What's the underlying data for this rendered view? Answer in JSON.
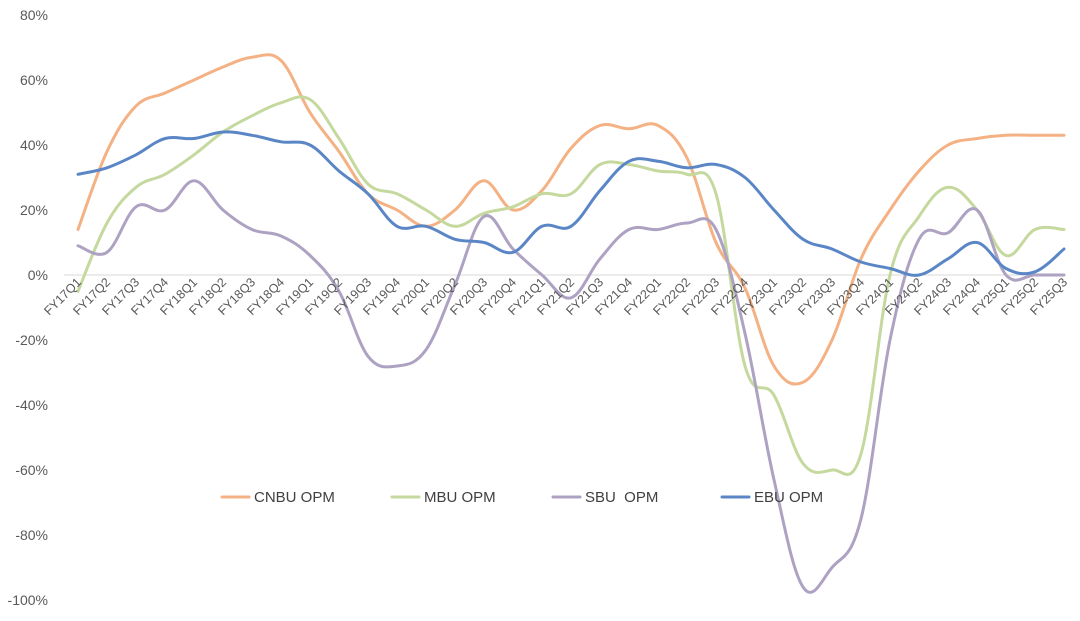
{
  "chart_data": {
    "type": "line",
    "title": "",
    "xlabel": "",
    "ylabel": "",
    "ylim": [
      -100,
      80
    ],
    "yticks": [
      80,
      60,
      40,
      20,
      0,
      -20,
      -40,
      -60,
      -80,
      -100
    ],
    "ytick_labels": [
      "80%",
      "60%",
      "40%",
      "20%",
      "0%",
      "-20%",
      "-40%",
      "-60%",
      "-80%",
      "-100%"
    ],
    "grid": false,
    "legend_position": "bottom-center",
    "categories": [
      "FY17Q1",
      "FY17Q2",
      "FY17Q3",
      "FY17Q4",
      "FY18Q1",
      "FY18Q2",
      "FY18Q3",
      "FY18Q4",
      "FY19Q1",
      "FY19Q2",
      "FY19Q3",
      "FY19Q4",
      "FY20Q1",
      "FY20Q2",
      "FY20Q3",
      "FY20Q4",
      "FY21Q1",
      "FY21Q2",
      "FY21Q3",
      "FY21Q4",
      "FY22Q1",
      "FY22Q2",
      "FY22Q3",
      "FY22Q4",
      "FY23Q1",
      "FY23Q2",
      "FY23Q3",
      "FY23Q4",
      "FY24Q1",
      "FY24Q2",
      "FY24Q3",
      "FY24Q4",
      "FY25Q1",
      "FY25Q2",
      "FY25Q3"
    ],
    "series": [
      {
        "name": "CNBU OPM",
        "color": "#F4B183",
        "values": [
          14,
          38,
          52,
          56,
          60,
          64,
          67,
          66,
          50,
          38,
          25,
          20,
          15,
          20,
          29,
          20,
          26,
          39,
          46,
          45,
          46,
          36,
          10,
          -4,
          -28,
          -33,
          -20,
          5,
          20,
          32,
          40,
          42,
          43,
          43,
          43
        ]
      },
      {
        "name": "MBU OPM",
        "color": "#C5D99E",
        "values": [
          -5,
          16,
          27,
          31,
          37,
          44,
          49,
          53,
          54,
          42,
          28,
          25,
          20,
          15,
          19,
          21,
          25,
          25,
          34,
          34,
          32,
          31,
          25,
          -28,
          -37,
          -58,
          -60,
          -55,
          0,
          18,
          27,
          20,
          6,
          14,
          14
        ]
      },
      {
        "name": "SBU  OPM",
        "color": "#AEA2C3",
        "values": [
          9,
          7,
          21,
          20,
          29,
          20,
          14,
          12,
          6,
          -5,
          -25,
          -28,
          -23,
          -3,
          18,
          8,
          0,
          -7,
          5,
          14,
          14,
          16,
          14,
          -18,
          -63,
          -96,
          -90,
          -75,
          -20,
          11,
          13,
          20,
          0,
          0,
          0
        ]
      },
      {
        "name": "EBU OPM",
        "color": "#5B86C6",
        "values": [
          31,
          33,
          37,
          42,
          42,
          44,
          43,
          41,
          40,
          32,
          25,
          15,
          15,
          11,
          10,
          7,
          15,
          15,
          26,
          35,
          35,
          33,
          34,
          30,
          20,
          11,
          8,
          4,
          2,
          0,
          5,
          10,
          2,
          1,
          8
        ]
      }
    ]
  }
}
